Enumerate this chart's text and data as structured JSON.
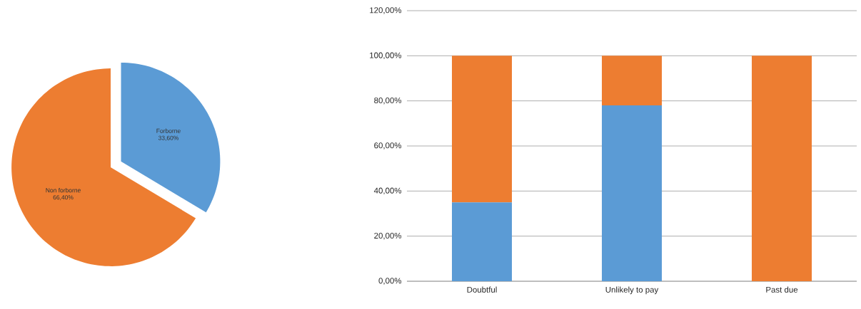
{
  "chart_data": [
    {
      "type": "pie",
      "categories": [
        "Forborne",
        "Non forborne"
      ],
      "values": [
        33.6,
        66.4
      ],
      "colors": [
        "#5b9bd5",
        "#ed7d31"
      ],
      "value_labels": [
        "33,60%",
        "66,40%"
      ]
    },
    {
      "type": "bar",
      "stacked": true,
      "categories": [
        "Doubtful",
        "Unlikely to pay",
        "Past due"
      ],
      "series": [
        {
          "color": "#5b9bd5",
          "values": [
            35,
            78,
            0
          ]
        },
        {
          "color": "#ed7d31",
          "values": [
            65,
            22,
            100
          ]
        }
      ],
      "ylim": [
        0,
        120
      ],
      "yticks": [
        {
          "value": 0,
          "label": "0,00%"
        },
        {
          "value": 20,
          "label": "20,00%"
        },
        {
          "value": 40,
          "label": "40,00%"
        },
        {
          "value": 60,
          "label": "60,00%"
        },
        {
          "value": 80,
          "label": "80,00%"
        },
        {
          "value": 100,
          "label": "100,00%"
        },
        {
          "value": 120,
          "label": "120,00%"
        }
      ],
      "grid": "y"
    }
  ]
}
